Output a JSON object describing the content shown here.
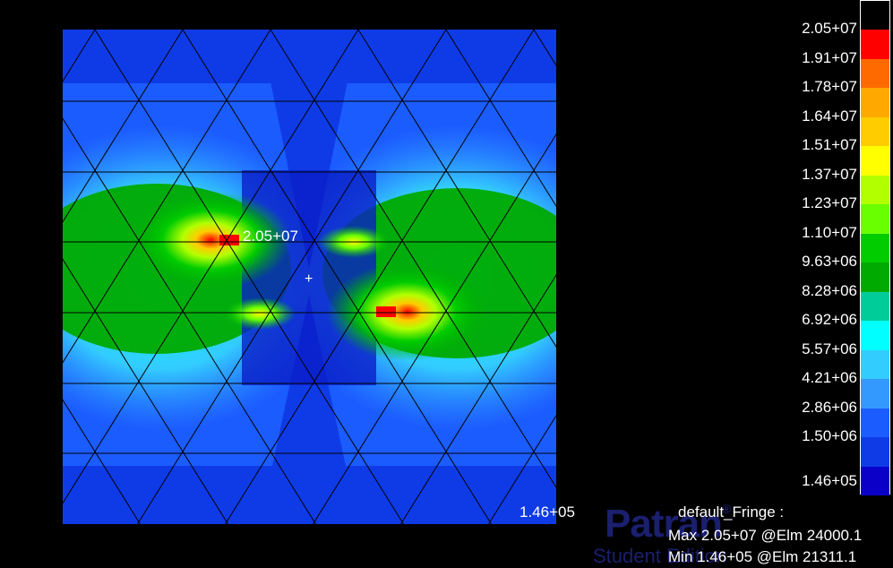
{
  "plot": {
    "max_marker_label": "2.05+07",
    "min_marker_label": "1.46+05",
    "pick_marker_glyph": "+"
  },
  "legend": {
    "ticks": [
      "2.05+07",
      "1.91+07",
      "1.78+07",
      "1.64+07",
      "1.51+07",
      "1.37+07",
      "1.23+07",
      "1.10+07",
      "9.63+06",
      "8.28+06",
      "6.92+06",
      "5.57+06",
      "4.21+06",
      "2.86+06",
      "1.50+06",
      "1.46+05"
    ],
    "colors": [
      "#000000",
      "#ff0000",
      "#ff6a00",
      "#ffa800",
      "#ffcc00",
      "#ffff00",
      "#b2ff00",
      "#6aff00",
      "#00cc00",
      "#00aa00",
      "#00cc99",
      "#00ffff",
      "#33ccff",
      "#3399ff",
      "#1b5cff",
      "#0f3be6",
      "#0a00c8"
    ]
  },
  "fringe_info": {
    "title": "default_Fringe :",
    "max_line": "Max 2.05+07 @Elm 24000.1",
    "min_line": "Min 1.46+05 @Elm 21311.1"
  },
  "watermark": {
    "brand": "Patran",
    "reg_mark": "®",
    "edition": "Student Edition"
  }
}
